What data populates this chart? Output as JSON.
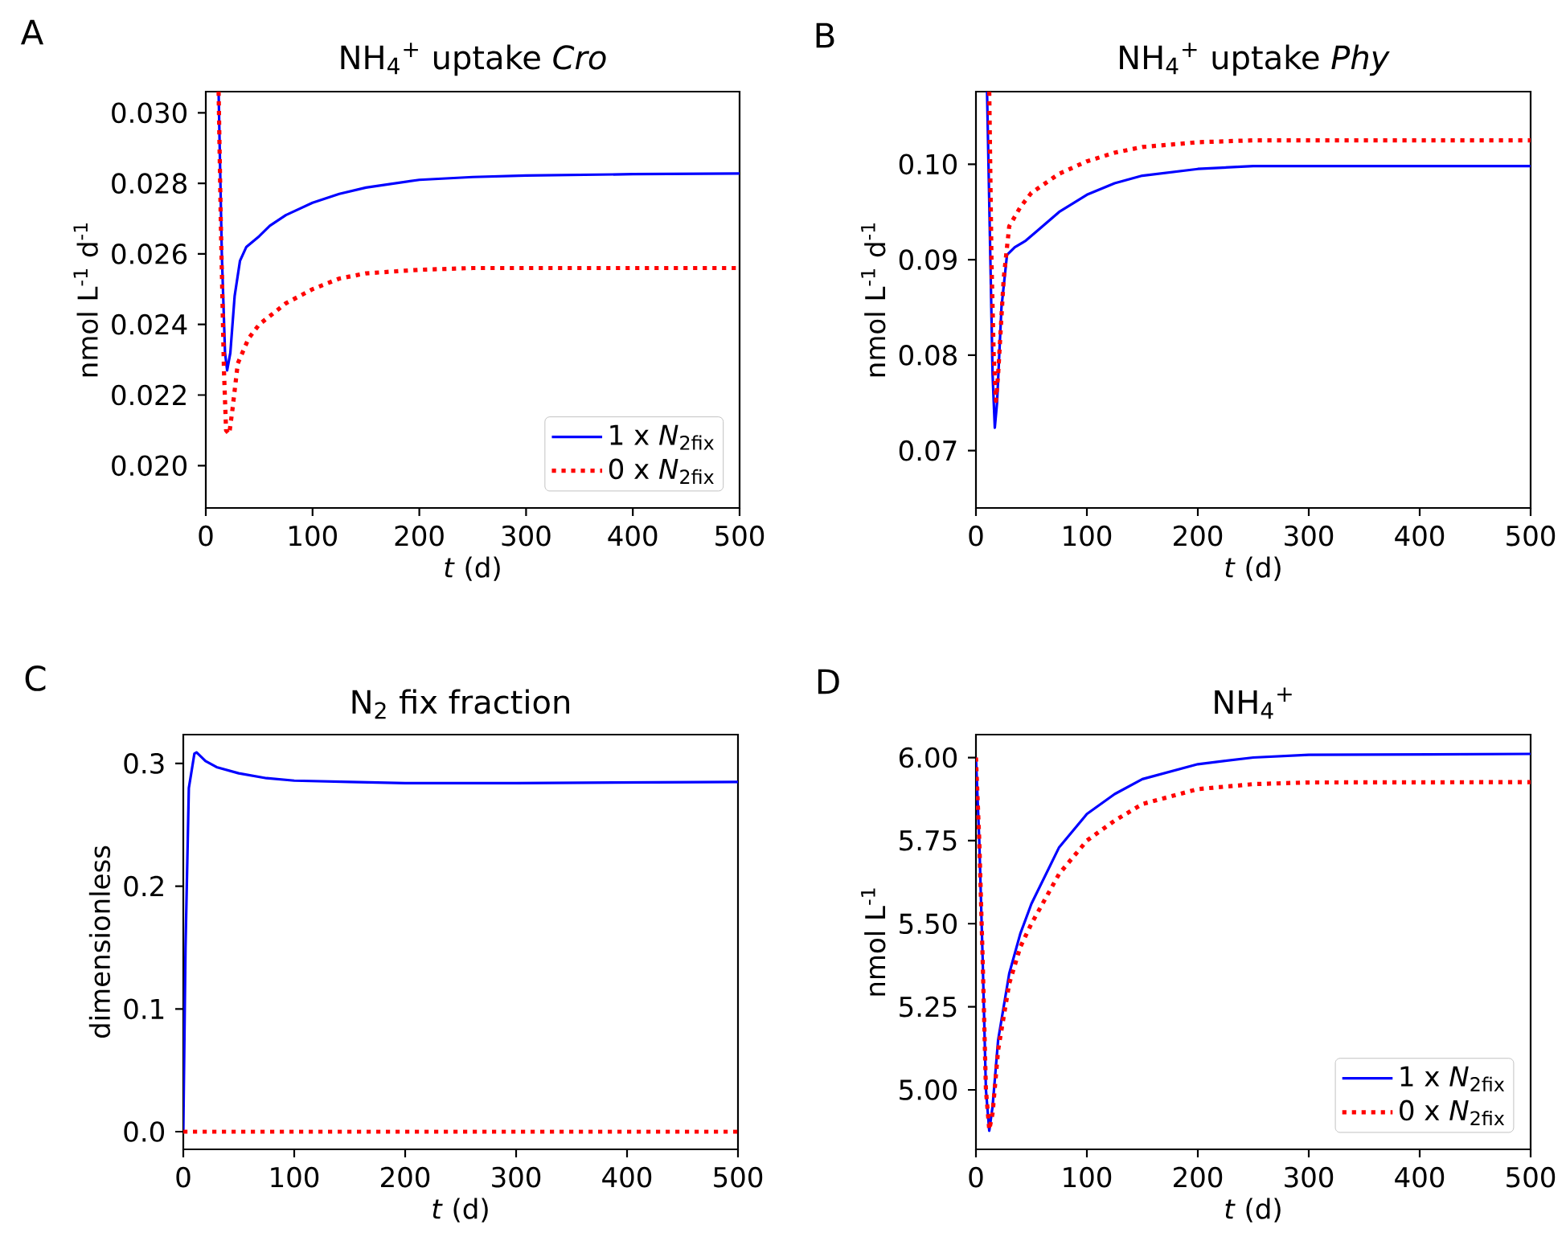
{
  "chart_data": [
    {
      "type": "line",
      "title": "NH$_{4}$$^{+}$  uptake *Cro*",
      "xlabel": "*t* (d)",
      "ylabel": "nmol L$^{-1}$ d$^{-1}$",
      "annotations": [
        "A"
      ],
      "legend": "bottom right",
      "xlim": [
        0,
        500
      ],
      "xticks": [
        0,
        100,
        200,
        300,
        400,
        500
      ],
      "ylim": [
        0.0188,
        0.0306
      ],
      "yticks": [
        {
          "value": 0.02,
          "label": "0.020"
        },
        0.022,
        0.024,
        0.026,
        0.028,
        {
          "value": 0.03,
          "label": "0.030"
        }
      ],
      "series": [
        {
          "name": "1 x *N*$_{2fix}$",
          "color": "#0000ff",
          "line_style": "solid",
          "x": [
            12,
            15,
            18,
            20,
            23,
            27,
            32,
            38,
            50,
            60,
            75,
            100,
            125,
            150,
            200,
            250,
            300,
            400,
            500
          ],
          "values": [
            0.0306,
            0.026,
            0.0232,
            0.0227,
            0.0232,
            0.0248,
            0.0258,
            0.0262,
            0.0265,
            0.0268,
            0.0271,
            0.02745,
            0.0277,
            0.02788,
            0.0281,
            0.02818,
            0.02822,
            0.02826,
            0.02828
          ]
        },
        {
          "name": "0 x *N*$_{2fix}$",
          "color": "#ff0000",
          "line_style": "dotted",
          "x": [
            12,
            14,
            17,
            19,
            22,
            25,
            30,
            40,
            50,
            75,
            100,
            125,
            150,
            200,
            250,
            300,
            500
          ],
          "values": [
            0.0306,
            0.027,
            0.0227,
            0.021,
            0.0209,
            0.0216,
            0.0229,
            0.0236,
            0.024,
            0.0246,
            0.025,
            0.0253,
            0.02545,
            0.02555,
            0.0256,
            0.0256,
            0.0256
          ]
        }
      ]
    },
    {
      "type": "line",
      "title": "NH$_{4}$$^{+}$  uptake *Phy*",
      "xlabel": "*t* (d)",
      "ylabel": "nmol L$^{-1}$ d$^{-1}$",
      "annotations": [
        "B"
      ],
      "xlim": [
        0,
        500
      ],
      "xticks": [
        0,
        100,
        200,
        300,
        400,
        500
      ],
      "ylim": [
        0.064,
        0.1076
      ],
      "yticks": [
        0.07,
        0.08,
        0.09,
        {
          "value": 0.1,
          "label": "0.10"
        }
      ],
      "series": [
        {
          "color": "#0000ff",
          "line_style": "solid",
          "x": [
            10,
            13,
            15,
            17,
            19,
            23,
            28,
            35,
            45,
            55,
            75,
            100,
            125,
            150,
            200,
            250,
            500
          ],
          "values": [
            0.1076,
            0.09,
            0.078,
            0.0724,
            0.075,
            0.085,
            0.0905,
            0.0913,
            0.092,
            0.093,
            0.095,
            0.0968,
            0.098,
            0.0988,
            0.0995,
            0.0998,
            0.0998
          ]
        },
        {
          "color": "#ff0000",
          "line_style": "dotted",
          "x": [
            12,
            14,
            16,
            18,
            20,
            25,
            30,
            40,
            50,
            75,
            100,
            125,
            150,
            200,
            250,
            500
          ],
          "values": [
            0.1076,
            0.09,
            0.08,
            0.0752,
            0.078,
            0.088,
            0.0935,
            0.0955,
            0.097,
            0.099,
            0.1003,
            0.1012,
            0.1018,
            0.1023,
            0.1025,
            0.1025
          ]
        }
      ]
    },
    {
      "type": "line",
      "title": "N$_{2}$ fix fraction",
      "xlabel": "*t* (d)",
      "ylabel": "dimensionless",
      "annotations": [
        "C"
      ],
      "xlim": [
        0,
        500
      ],
      "xticks": [
        0,
        100,
        200,
        300,
        400,
        500
      ],
      "ylim": [
        -0.0144,
        0.3235
      ],
      "yticks": [
        {
          "value": 0,
          "label": "0.0"
        },
        0.1,
        0.2,
        0.3
      ],
      "series": [
        {
          "color": "#0000ff",
          "line_style": "solid",
          "x": [
            0,
            2,
            5,
            10,
            12,
            20,
            30,
            50,
            75,
            100,
            150,
            200,
            300,
            500
          ],
          "values": [
            0,
            0.15,
            0.28,
            0.308,
            0.309,
            0.302,
            0.297,
            0.292,
            0.288,
            0.286,
            0.285,
            0.284,
            0.284,
            0.285
          ]
        },
        {
          "color": "#ff0000",
          "line_style": "dotted",
          "x": [
            0,
            500
          ],
          "values": [
            0,
            0
          ]
        }
      ]
    },
    {
      "type": "line",
      "title": "NH$_{4}$$^{+}$",
      "xlabel": "*t* (d)",
      "ylabel": "nmol L$^{-1}$",
      "annotations": [
        "D"
      ],
      "legend": "bottom right",
      "xlim": [
        0,
        500
      ],
      "xticks": [
        0,
        100,
        200,
        300,
        400,
        500
      ],
      "ylim": [
        4.821,
        6.069
      ],
      "yticks": [
        {
          "value": 5,
          "label": "5.00"
        },
        5.25,
        {
          "value": 5.5,
          "label": "5.50"
        },
        5.75,
        {
          "value": 6,
          "label": "6.00"
        }
      ],
      "series": [
        {
          "name": "1 x *N*$_{2fix}$",
          "color": "#0000ff",
          "line_style": "solid",
          "x": [
            0,
            3,
            6,
            9,
            12,
            15,
            20,
            30,
            40,
            50,
            75,
            100,
            125,
            150,
            200,
            250,
            300,
            500
          ],
          "values": [
            6.0,
            5.75,
            5.4,
            5.0,
            4.877,
            4.95,
            5.15,
            5.35,
            5.47,
            5.56,
            5.73,
            5.83,
            5.89,
            5.935,
            5.98,
            6.0,
            6.008,
            6.011
          ]
        },
        {
          "name": "0 x *N*$_{2fix}$",
          "color": "#ff0000",
          "line_style": "dotted",
          "x": [
            0,
            3,
            6,
            9,
            12,
            15,
            20,
            30,
            40,
            50,
            75,
            100,
            125,
            150,
            200,
            250,
            300,
            500
          ],
          "values": [
            6.0,
            5.75,
            5.4,
            5.0,
            4.88,
            4.93,
            5.12,
            5.32,
            5.43,
            5.5,
            5.65,
            5.75,
            5.81,
            5.86,
            5.905,
            5.92,
            5.925,
            5.926
          ]
        }
      ]
    }
  ]
}
